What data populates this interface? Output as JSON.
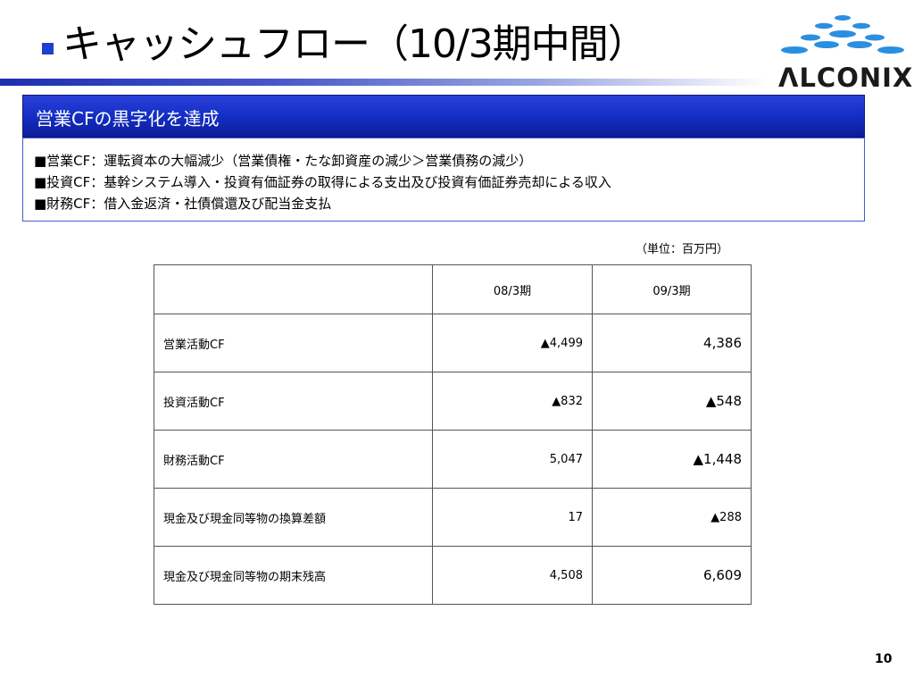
{
  "slide": {
    "title": "キャッシュフロー（10/3期中間）",
    "page_number": "10"
  },
  "logo": {
    "text": "ΛLCONIX"
  },
  "banner": {
    "text": "営業CFの黒字化を達成"
  },
  "info": {
    "lines": [
      "■営業CF：運転資本の大幅減少（営業債権・たな卸資産の減少＞営業債務の減少）",
      "■投資CF：基幹システム導入・投資有価証券の取得による支出及び投資有価証券売却による収入",
      "■財務CF：借入金返済・社債償還及び配当金支払"
    ]
  },
  "unit_label": "（単位：百万円）",
  "table": {
    "headers": [
      "",
      "08/3期",
      "09/3期"
    ],
    "rows": [
      {
        "label": "営業活動CF",
        "v1": "▲4,499",
        "v2": "4,386"
      },
      {
        "label": "投資活動CF",
        "v1": "▲832",
        "v2": "▲548"
      },
      {
        "label": "財務活動CF",
        "v1": "5,047",
        "v2": "▲1,448"
      },
      {
        "label": "現金及び現金同等物の換算差額",
        "v1": "17",
        "v2": "▲288"
      },
      {
        "label": "現金及び現金同等物の期末残高",
        "v1": "4,508",
        "v2": "6,609"
      }
    ]
  },
  "colors": {
    "accent": "#1530c8",
    "banner_dark": "#0c1d98",
    "title_bullet": "#1f3fd0"
  }
}
